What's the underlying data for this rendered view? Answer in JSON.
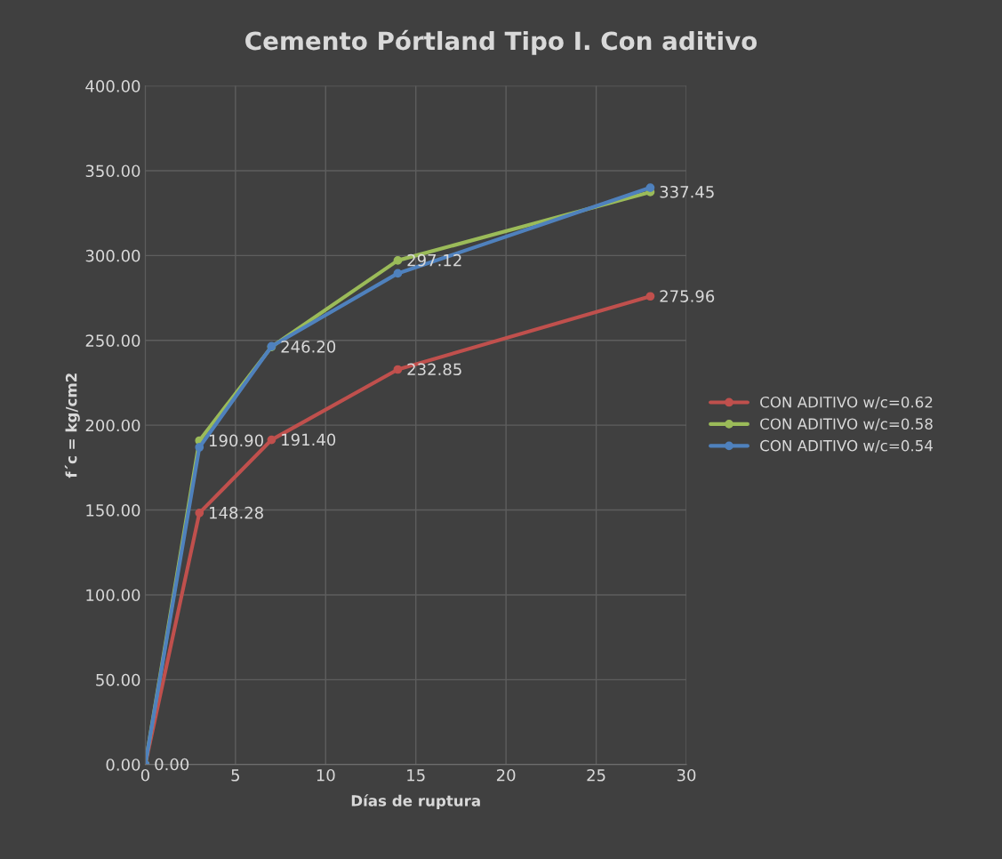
{
  "chart_data": {
    "type": "line",
    "title": "Cemento Pórtland Tipo I. Con aditivo",
    "xlabel": "Días de ruptura",
    "ylabel": "f´c = kg/cm2",
    "x": [
      0,
      3,
      7,
      14,
      28
    ],
    "series": [
      {
        "name": "CON ADITIVO w/c=0.62",
        "color": "#c0504d",
        "values": [
          0,
          148.28,
          191.4,
          232.85,
          275.96
        ],
        "value_labels": [
          "0.00",
          "148.28",
          "191.40",
          "232.85",
          "275.96"
        ]
      },
      {
        "name": "CON ADITIVO w/c=0.58",
        "color": "#9bbb59",
        "values": [
          0,
          190.9,
          246.2,
          297.12,
          337.45
        ],
        "value_labels": [
          null,
          "190.90",
          "246.20",
          "297.12",
          "337.45"
        ]
      },
      {
        "name": "CON ADITIVO w/c=0.54",
        "color": "#4f81bd",
        "values": [
          0,
          187,
          246.5,
          289.5,
          340
        ]
      }
    ],
    "xlim": [
      0,
      30
    ],
    "xticks": [
      0,
      5,
      10,
      15,
      20,
      25,
      30
    ],
    "ylim": [
      0,
      400
    ],
    "yticks": [
      {
        "value": 0,
        "label": "0.00"
      },
      {
        "value": 50,
        "label": "50.00"
      },
      {
        "value": 100,
        "label": "100.00"
      },
      {
        "value": 150,
        "label": "150.00"
      },
      {
        "value": 200,
        "label": "200.00"
      },
      {
        "value": 250,
        "label": "250.00"
      },
      {
        "value": 300,
        "label": "300.00"
      },
      {
        "value": 350,
        "label": "350.00"
      },
      {
        "value": 400,
        "label": "400.00"
      }
    ],
    "grid": true,
    "legend": "right",
    "marker": "circle",
    "line_style": "solid"
  }
}
